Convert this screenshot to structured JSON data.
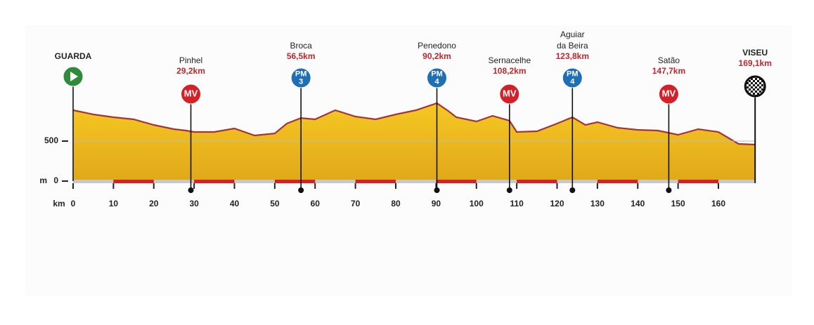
{
  "chart_data": {
    "type": "area",
    "x": [
      0,
      5,
      10,
      15,
      20,
      25,
      28,
      30,
      35,
      40,
      45,
      50,
      53,
      56.5,
      60,
      65,
      70,
      75,
      80,
      85,
      90.2,
      93,
      95,
      100,
      104,
      108.2,
      110,
      115,
      120,
      123.8,
      127,
      130,
      135,
      140,
      145,
      150,
      155,
      160,
      165,
      169.1
    ],
    "values": [
      886,
      833,
      798,
      772,
      702,
      649,
      632,
      614,
      614,
      658,
      570,
      596,
      719,
      789,
      772,
      886,
      807,
      772,
      833,
      886,
      974,
      877,
      798,
      746,
      816,
      754,
      614,
      623,
      719,
      798,
      702,
      737,
      667,
      640,
      632,
      579,
      649,
      614,
      465,
      456
    ],
    "color": "#f2c21a",
    "line_color": "#a3343a",
    "xlim": [
      0,
      169.1
    ],
    "xticks": [
      0,
      10,
      20,
      30,
      40,
      50,
      60,
      70,
      80,
      90,
      100,
      110,
      120,
      130,
      140,
      150,
      160
    ],
    "ylim": [
      0,
      2000
    ],
    "yticks": [
      0,
      500
    ],
    "grid": true,
    "x_label": "km",
    "y_label": "m",
    "markers": [
      {
        "name": [
          "GUARDA"
        ],
        "distance": 0,
        "icon": "start",
        "color": "#2e8b3a"
      },
      {
        "name": [
          "Pinhel"
        ],
        "distance": 29.2,
        "distance_label": "29,2km",
        "icon": "sprint",
        "badge": [
          "MV"
        ],
        "color": "#d42027"
      },
      {
        "name": [
          "Broca"
        ],
        "distance": 56.5,
        "distance_label": "56,5km",
        "icon": "climb",
        "badge": [
          "PM",
          "3"
        ],
        "color": "#1f6fb5"
      },
      {
        "name": [
          "Penedono"
        ],
        "distance": 90.2,
        "distance_label": "90,2km",
        "icon": "climb",
        "badge": [
          "PM",
          "4"
        ],
        "color": "#1f6fb5"
      },
      {
        "name": [
          "Sernacelhe"
        ],
        "distance": 108.2,
        "distance_label": "108,2km",
        "icon": "sprint",
        "badge": [
          "MV"
        ],
        "color": "#d42027"
      },
      {
        "name": [
          "Aguiar",
          "da Beira"
        ],
        "distance": 123.8,
        "distance_label": "123,8km",
        "icon": "climb",
        "badge": [
          "PM",
          "4"
        ],
        "color": "#1f6fb5"
      },
      {
        "name": [
          "Satão"
        ],
        "distance": 147.7,
        "distance_label": "147,7km",
        "icon": "sprint",
        "badge": [
          "MV"
        ],
        "color": "#d42027"
      },
      {
        "name": [
          "VISEU"
        ],
        "distance": 169.1,
        "distance_label": "169,1km",
        "icon": "finish",
        "color": "#1a1a1a"
      }
    ]
  }
}
